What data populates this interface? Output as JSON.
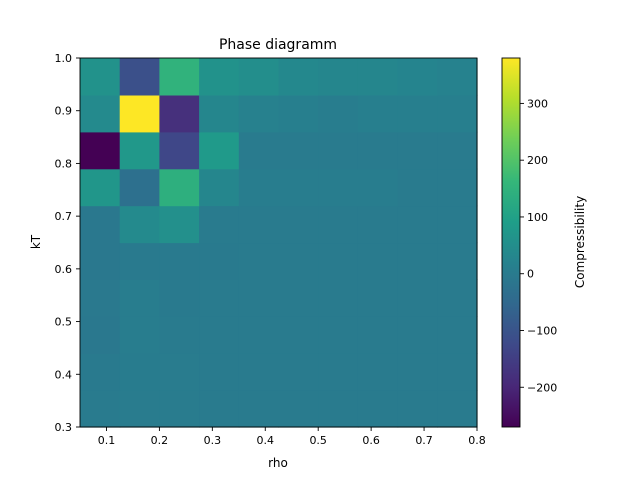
{
  "chart_data": {
    "type": "heatmap",
    "title": "Phase diagramm",
    "xlabel": "rho",
    "ylabel": "kT",
    "colorbar_label": "Compressibility",
    "xlim": [
      0.05,
      0.8
    ],
    "ylim": [
      0.3,
      1.0
    ],
    "x_ticks": [
      0.1,
      0.2,
      0.3,
      0.4,
      0.5,
      0.6,
      0.7,
      0.8
    ],
    "x_tick_labels": [
      "0.1",
      "0.2",
      "0.3",
      "0.4",
      "0.5",
      "0.6",
      "0.7",
      "0.8"
    ],
    "y_ticks": [
      0.3,
      0.4,
      0.5,
      0.6,
      0.7,
      0.8,
      0.9,
      1.0
    ],
    "y_tick_labels": [
      "0.3",
      "0.4",
      "0.5",
      "0.6",
      "0.7",
      "0.8",
      "0.9",
      "1.0"
    ],
    "colorbar_range": [
      -270,
      380
    ],
    "colorbar_ticks": [
      -200,
      -100,
      0,
      100,
      200,
      300
    ],
    "colorbar_tick_labels": [
      "−200",
      "−100",
      "0",
      "100",
      "200",
      "300"
    ],
    "colormap": "viridis",
    "x_edges": [
      0.05,
      0.125,
      0.2,
      0.275,
      0.35,
      0.425,
      0.5,
      0.575,
      0.65,
      0.725,
      0.8
    ],
    "y_edges": [
      0.3,
      0.37,
      0.44,
      0.51,
      0.58,
      0.65,
      0.72,
      0.79,
      0.86,
      0.93,
      1.0
    ],
    "values": [
      [
        0,
        2,
        1,
        0,
        0,
        0,
        0,
        0,
        0,
        0
      ],
      [
        -3,
        3,
        2,
        0,
        0,
        0,
        0,
        0,
        0,
        0
      ],
      [
        -10,
        5,
        0,
        0,
        0,
        0,
        0,
        0,
        0,
        0
      ],
      [
        -6,
        6,
        -2,
        0,
        0,
        0,
        0,
        0,
        0,
        0
      ],
      [
        -8,
        -4,
        -4,
        -2,
        0,
        0,
        0,
        0,
        0,
        0
      ],
      [
        -10,
        40,
        55,
        0,
        0,
        0,
        0,
        0,
        0,
        0
      ],
      [
        70,
        -30,
        140,
        30,
        5,
        5,
        5,
        5,
        0,
        0
      ],
      [
        -270,
        75,
        -130,
        80,
        0,
        0,
        0,
        0,
        0,
        0
      ],
      [
        40,
        380,
        -180,
        30,
        15,
        10,
        5,
        10,
        10,
        10
      ],
      [
        60,
        -110,
        150,
        60,
        50,
        35,
        30,
        30,
        25,
        20
      ]
    ]
  }
}
